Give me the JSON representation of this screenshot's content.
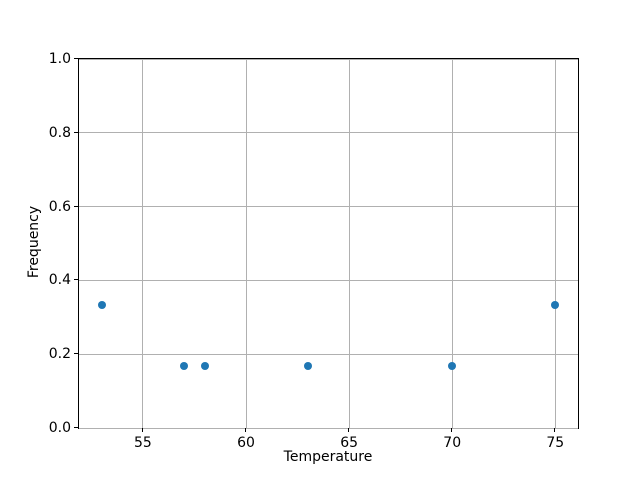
{
  "chart_data": {
    "type": "scatter",
    "xlabel": "Temperature",
    "ylabel": "Frequency",
    "x": [
      53,
      57,
      58,
      63,
      70,
      75
    ],
    "y": [
      0.333,
      0.167,
      0.167,
      0.167,
      0.167,
      0.333
    ],
    "xlim": [
      51.9,
      76.1
    ],
    "ylim": [
      0.0,
      1.0
    ],
    "xticks": {
      "values": [
        55,
        60,
        65,
        70,
        75
      ],
      "labels": [
        "55",
        "60",
        "65",
        "70",
        "75"
      ]
    },
    "yticks": {
      "values": [
        0.0,
        0.2,
        0.4,
        0.6,
        0.8,
        1.0
      ],
      "labels": [
        "0.0",
        "0.2",
        "0.4",
        "0.6",
        "0.8",
        "1.0"
      ]
    },
    "grid": true,
    "legend": false,
    "colors": {
      "marker": "#1f77b4",
      "grid": "#b0b0b0",
      "spine": "#000000",
      "background": "#ffffff",
      "text": "#000000"
    }
  }
}
